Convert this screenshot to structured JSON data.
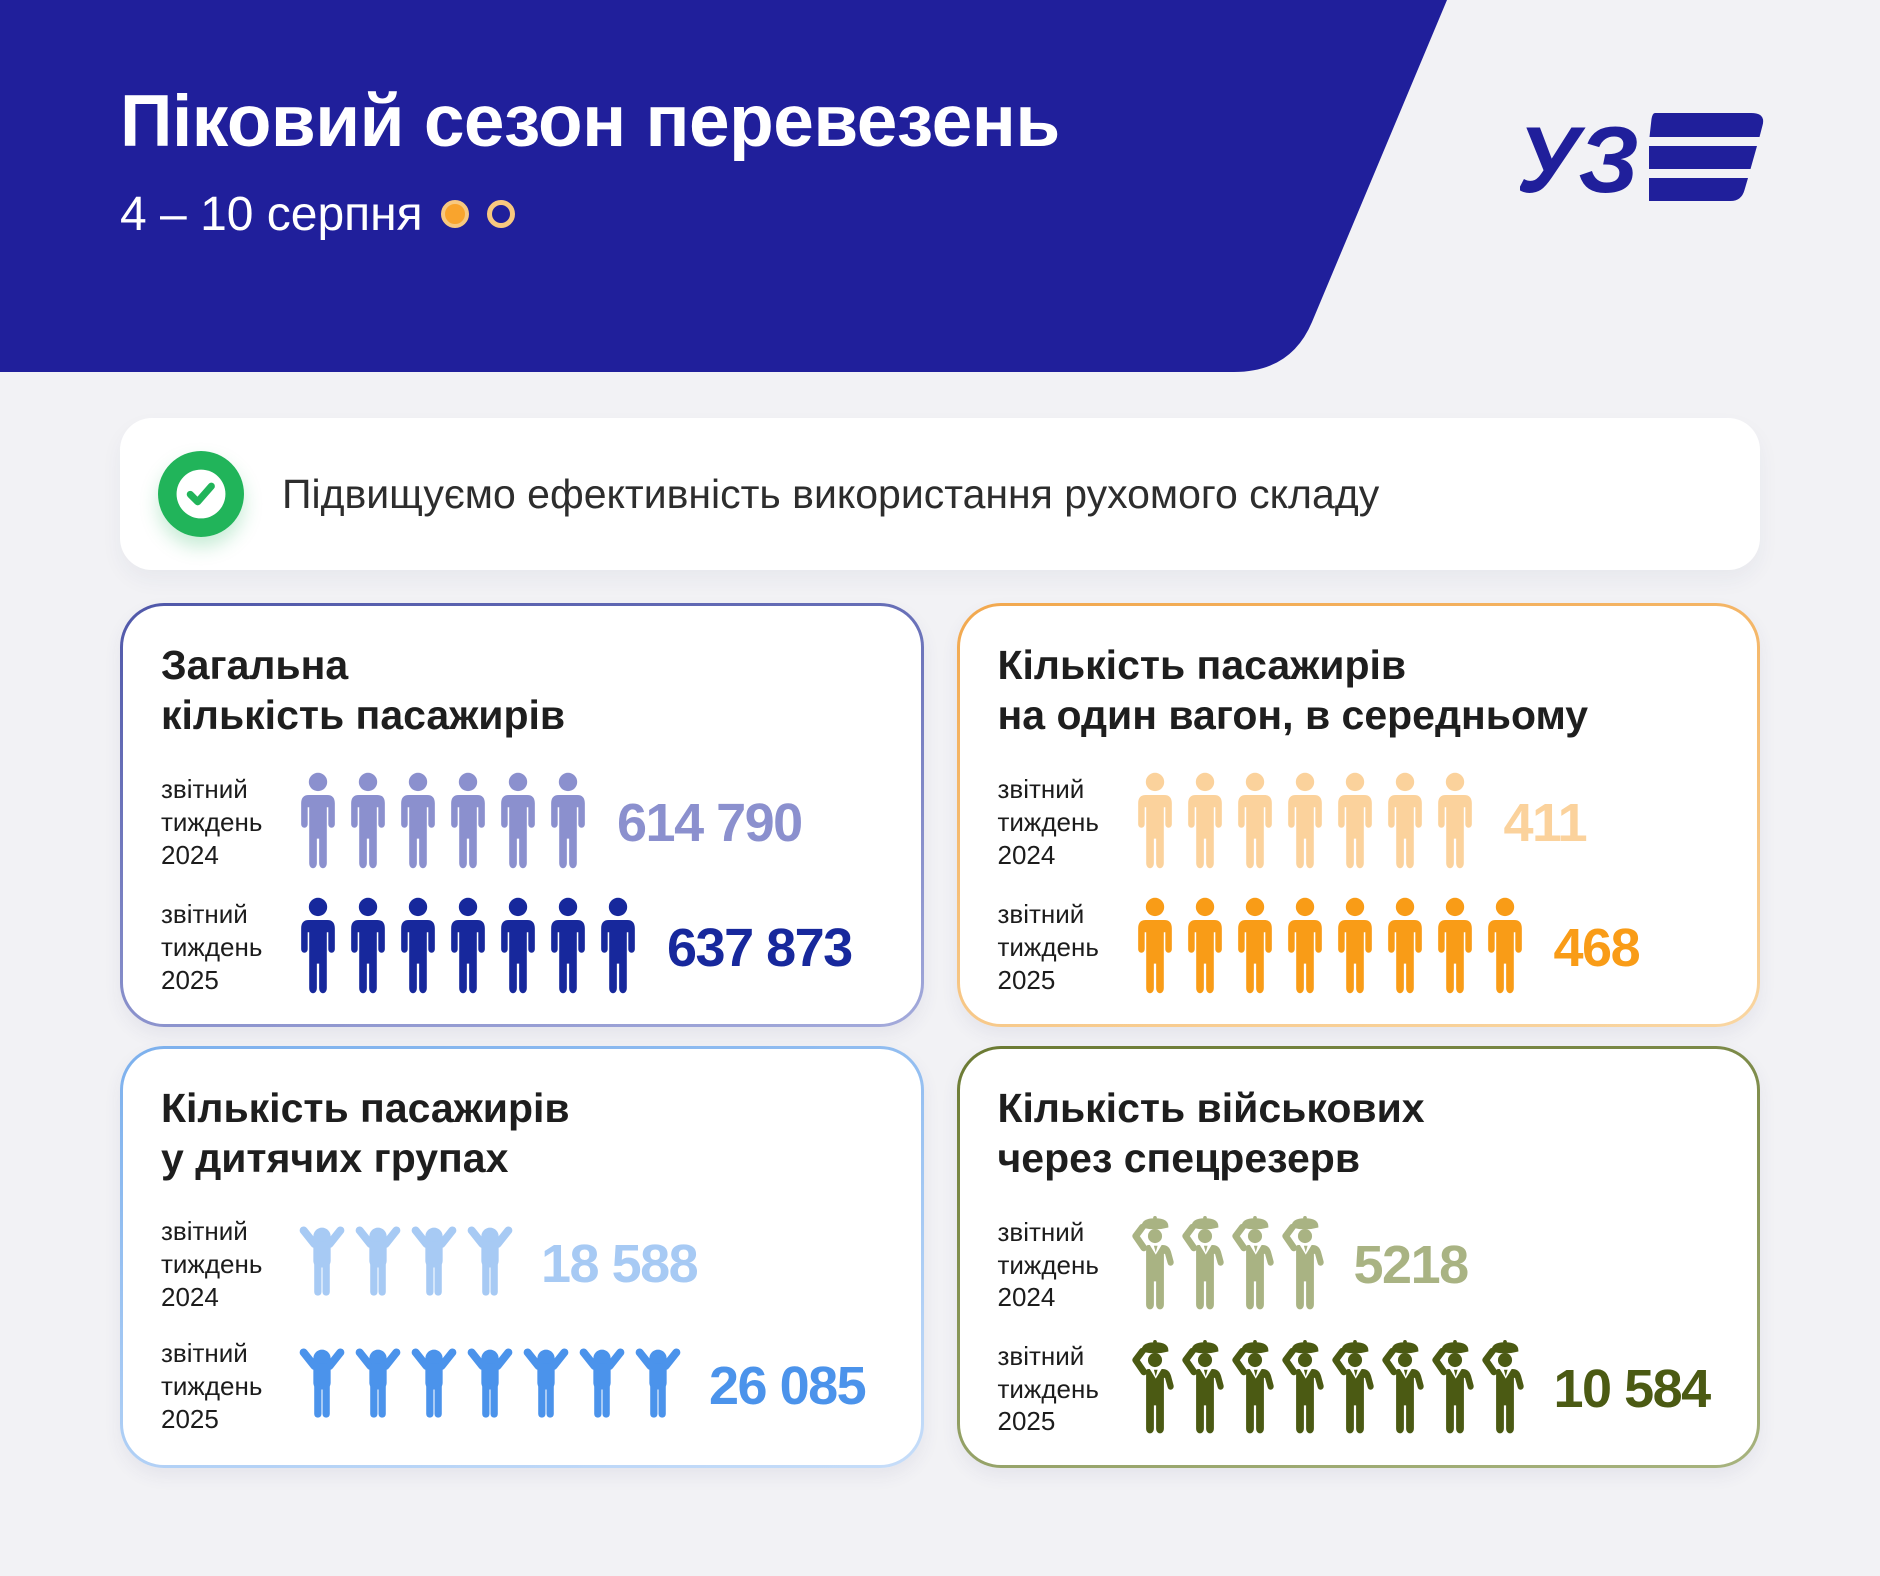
{
  "page": {
    "background": "#f2f2f5"
  },
  "header": {
    "background": "#201f9b",
    "logo_color": "#201f9b",
    "logo_text": "УЗ",
    "title": "Піковий сезон перевезень",
    "subtitle": "4 – 10 серпня",
    "page_indicator": {
      "total": 2,
      "current": 1,
      "color": "#f9a42d",
      "ring_color": "#f8c87f"
    }
  },
  "banner": {
    "text": "Підвищуємо ефективність використання рухомого складу",
    "check_color": "#21b45a"
  },
  "cards": [
    {
      "title_line1": "Загальна",
      "title_line2": "кількість пасажирів",
      "border_from": "#4f57a9",
      "border_to": "#a3aadb",
      "rows": [
        {
          "label": "звітний тиждень 2024",
          "icon": "person",
          "icons": 6,
          "value": "614 790",
          "color": "#8b90ce"
        },
        {
          "label": "звітний тиждень 2025",
          "icon": "person",
          "icons": 7,
          "value": "637 873",
          "color": "#17289c"
        }
      ]
    },
    {
      "title_line1": "Кількість пасажирів",
      "title_line2": "на один вагон, в середньому",
      "border_from": "#f2a84e",
      "border_to": "#f9d6a2",
      "rows": [
        {
          "label": "звітний тиждень 2024",
          "icon": "person",
          "icons": 7,
          "value": "411",
          "color": "#fbd29c"
        },
        {
          "label": "звітний тиждень 2025",
          "icon": "person",
          "icons": 8,
          "value": "468",
          "color": "#f99c17"
        }
      ]
    },
    {
      "title_line1": "Кількість пасажирів",
      "title_line2": "у дитячих групах",
      "border_from": "#7cb0ed",
      "border_to": "#c6ddf9",
      "rows": [
        {
          "label": "звітний тиждень 2024",
          "icon": "child",
          "icons": 4,
          "value": "18 588",
          "color": "#a7caf4"
        },
        {
          "label": "звітний тиждень 2025",
          "icon": "child",
          "icons": 7,
          "value": "26 085",
          "color": "#4b93eb"
        }
      ]
    },
    {
      "title_line1": "Кількість військових",
      "title_line2": "через спецрезерв",
      "border_from": "#6b7a33",
      "border_to": "#a7b37e",
      "rows": [
        {
          "label": "звітний тиждень 2024",
          "icon": "soldier",
          "icons": 4,
          "value": "5218",
          "color": "#a9b383"
        },
        {
          "label": "звітний тиждень 2025",
          "icon": "soldier",
          "icons": 8,
          "value": "10 584",
          "color": "#4b5a13"
        }
      ]
    }
  ]
}
